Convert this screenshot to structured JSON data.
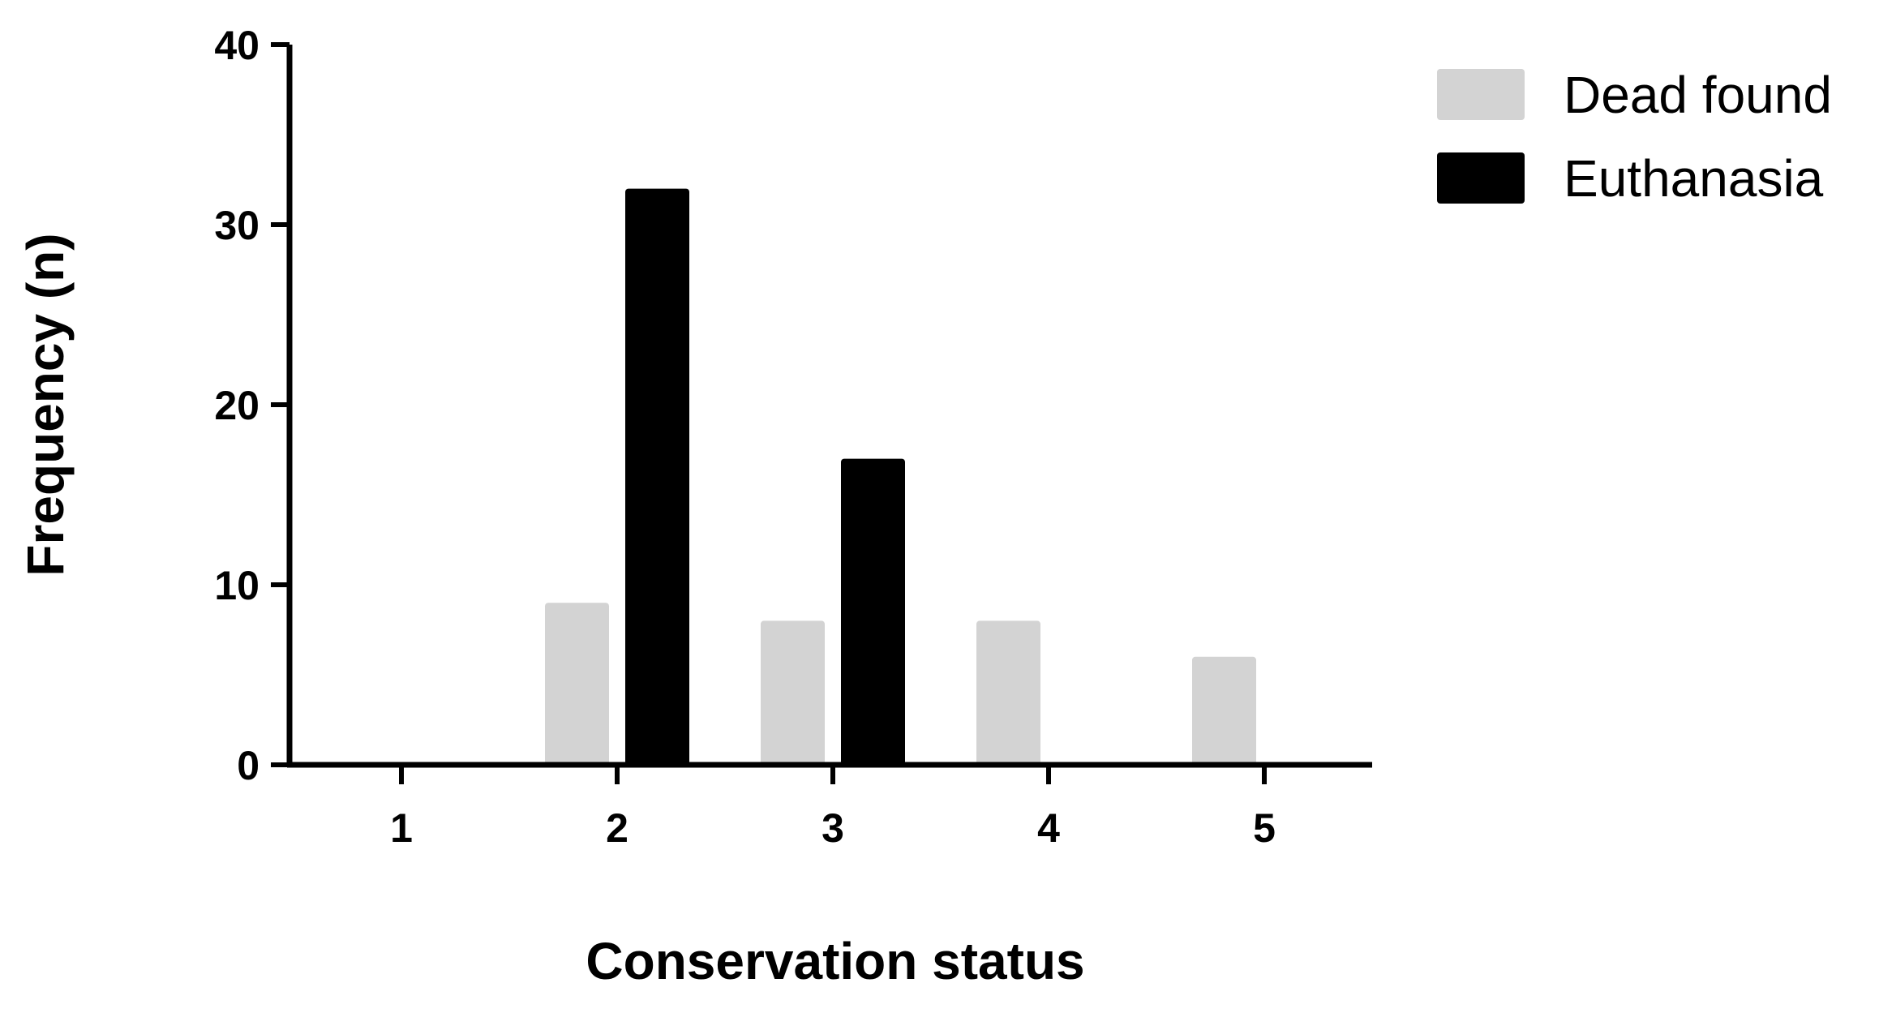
{
  "chart_data": {
    "type": "bar",
    "categories": [
      "1",
      "2",
      "3",
      "4",
      "5"
    ],
    "series": [
      {
        "name": "Dead found",
        "values": [
          0,
          9,
          8,
          8,
          6
        ],
        "color": "#d3d3d3"
      },
      {
        "name": "Euthanasia",
        "values": [
          0,
          32,
          17,
          0,
          0
        ],
        "color": "#000000"
      }
    ],
    "xlabel": "Conservation status",
    "ylabel": "Frequency (n)",
    "ylim": [
      0,
      40
    ],
    "yticks": [
      "0",
      "10",
      "20",
      "30",
      "40"
    ],
    "grid": false,
    "legend_position": "top-right"
  }
}
